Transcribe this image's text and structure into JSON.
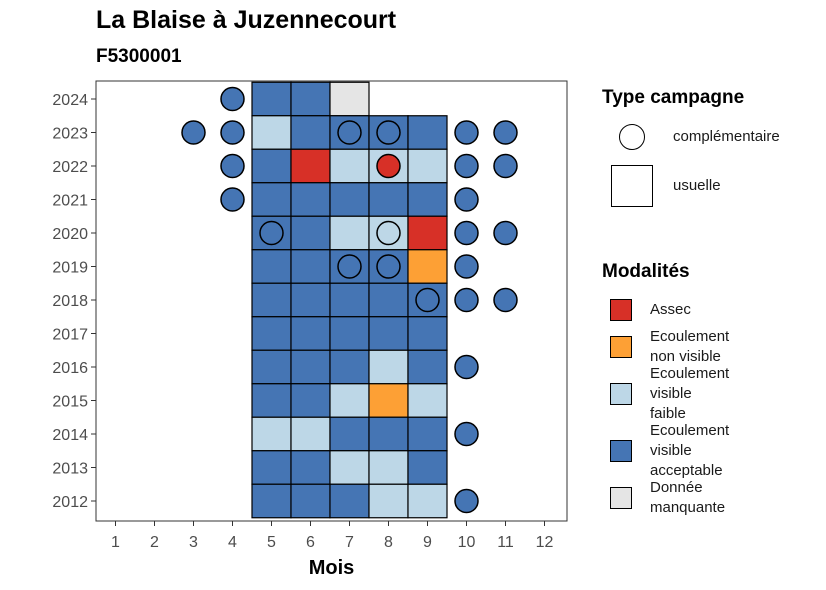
{
  "title": "La Blaise à Juzennecourt",
  "subtitle": "F5300001",
  "colors": {
    "assec": "#D73027",
    "ecoulement_non_visible": "#FDA035",
    "ecoulement_visible_faible": "#BDD7E7",
    "ecoulement_visible_acceptable": "#4575B4",
    "donnee_manquante": "#E5E5E5"
  },
  "legend_type": {
    "title": "Type campagne",
    "items": [
      {
        "label": "complémentaire",
        "shape": "circle"
      },
      {
        "label": "usuelle",
        "shape": "square"
      }
    ]
  },
  "legend_modalites": {
    "title": "Modalités",
    "items": [
      {
        "lines": [
          "Assec"
        ],
        "color": "#D73027"
      },
      {
        "lines": [
          "Ecoulement",
          "non visible"
        ],
        "color": "#FDA035"
      },
      {
        "lines": [
          "Ecoulement",
          "visible",
          "faible"
        ],
        "color": "#BDD7E7"
      },
      {
        "lines": [
          "Ecoulement",
          "visible",
          "acceptable"
        ],
        "color": "#4575B4"
      },
      {
        "lines": [
          "Donnée",
          "manquante"
        ],
        "color": "#E5E5E5"
      }
    ]
  },
  "chart_data": {
    "type": "heatmap",
    "xlabel": "Mois",
    "ylabel": "",
    "x_ticks": [
      "1",
      "2",
      "3",
      "4",
      "5",
      "6",
      "7",
      "8",
      "9",
      "10",
      "11",
      "12"
    ],
    "y_ticks": [
      "2012",
      "2013",
      "2014",
      "2015",
      "2016",
      "2017",
      "2018",
      "2019",
      "2020",
      "2021",
      "2022",
      "2023",
      "2024"
    ],
    "usuelle": [
      {
        "year": 2024,
        "cells": [
          [
            5,
            "ecoulement_visible_acceptable"
          ],
          [
            6,
            "ecoulement_visible_acceptable"
          ],
          [
            7,
            "donnee_manquante"
          ]
        ]
      },
      {
        "year": 2023,
        "cells": [
          [
            5,
            "ecoulement_visible_faible"
          ],
          [
            6,
            "ecoulement_visible_acceptable"
          ],
          [
            7,
            "ecoulement_visible_acceptable"
          ],
          [
            8,
            "ecoulement_visible_acceptable"
          ],
          [
            9,
            "ecoulement_visible_acceptable"
          ]
        ]
      },
      {
        "year": 2022,
        "cells": [
          [
            5,
            "ecoulement_visible_acceptable"
          ],
          [
            6,
            "assec"
          ],
          [
            7,
            "ecoulement_visible_faible"
          ],
          [
            8,
            "ecoulement_visible_faible"
          ],
          [
            9,
            "ecoulement_visible_faible"
          ]
        ]
      },
      {
        "year": 2021,
        "cells": [
          [
            5,
            "ecoulement_visible_acceptable"
          ],
          [
            6,
            "ecoulement_visible_acceptable"
          ],
          [
            7,
            "ecoulement_visible_acceptable"
          ],
          [
            8,
            "ecoulement_visible_acceptable"
          ],
          [
            9,
            "ecoulement_visible_acceptable"
          ]
        ]
      },
      {
        "year": 2020,
        "cells": [
          [
            5,
            "ecoulement_visible_acceptable"
          ],
          [
            6,
            "ecoulement_visible_acceptable"
          ],
          [
            7,
            "ecoulement_visible_faible"
          ],
          [
            8,
            "ecoulement_visible_faible"
          ],
          [
            9,
            "assec"
          ]
        ]
      },
      {
        "year": 2019,
        "cells": [
          [
            5,
            "ecoulement_visible_acceptable"
          ],
          [
            6,
            "ecoulement_visible_acceptable"
          ],
          [
            7,
            "ecoulement_visible_acceptable"
          ],
          [
            8,
            "ecoulement_visible_acceptable"
          ],
          [
            9,
            "ecoulement_non_visible"
          ]
        ]
      },
      {
        "year": 2018,
        "cells": [
          [
            5,
            "ecoulement_visible_acceptable"
          ],
          [
            6,
            "ecoulement_visible_acceptable"
          ],
          [
            7,
            "ecoulement_visible_acceptable"
          ],
          [
            8,
            "ecoulement_visible_acceptable"
          ],
          [
            9,
            "ecoulement_visible_acceptable"
          ]
        ]
      },
      {
        "year": 2017,
        "cells": [
          [
            5,
            "ecoulement_visible_acceptable"
          ],
          [
            6,
            "ecoulement_visible_acceptable"
          ],
          [
            7,
            "ecoulement_visible_acceptable"
          ],
          [
            8,
            "ecoulement_visible_acceptable"
          ],
          [
            9,
            "ecoulement_visible_acceptable"
          ]
        ]
      },
      {
        "year": 2016,
        "cells": [
          [
            5,
            "ecoulement_visible_acceptable"
          ],
          [
            6,
            "ecoulement_visible_acceptable"
          ],
          [
            7,
            "ecoulement_visible_acceptable"
          ],
          [
            8,
            "ecoulement_visible_faible"
          ],
          [
            9,
            "ecoulement_visible_acceptable"
          ]
        ]
      },
      {
        "year": 2015,
        "cells": [
          [
            5,
            "ecoulement_visible_acceptable"
          ],
          [
            6,
            "ecoulement_visible_acceptable"
          ],
          [
            7,
            "ecoulement_visible_faible"
          ],
          [
            8,
            "ecoulement_non_visible"
          ],
          [
            9,
            "ecoulement_visible_faible"
          ]
        ]
      },
      {
        "year": 2014,
        "cells": [
          [
            5,
            "ecoulement_visible_faible"
          ],
          [
            6,
            "ecoulement_visible_faible"
          ],
          [
            7,
            "ecoulement_visible_acceptable"
          ],
          [
            8,
            "ecoulement_visible_acceptable"
          ],
          [
            9,
            "ecoulement_visible_acceptable"
          ]
        ]
      },
      {
        "year": 2013,
        "cells": [
          [
            5,
            "ecoulement_visible_acceptable"
          ],
          [
            6,
            "ecoulement_visible_acceptable"
          ],
          [
            7,
            "ecoulement_visible_faible"
          ],
          [
            8,
            "ecoulement_visible_faible"
          ],
          [
            9,
            "ecoulement_visible_acceptable"
          ]
        ]
      },
      {
        "year": 2012,
        "cells": [
          [
            5,
            "ecoulement_visible_acceptable"
          ],
          [
            6,
            "ecoulement_visible_acceptable"
          ],
          [
            7,
            "ecoulement_visible_acceptable"
          ],
          [
            8,
            "ecoulement_visible_faible"
          ],
          [
            9,
            "ecoulement_visible_faible"
          ]
        ]
      }
    ],
    "complementaire": [
      {
        "year": 2024,
        "cells": [
          [
            4,
            "ecoulement_visible_acceptable"
          ]
        ]
      },
      {
        "year": 2023,
        "cells": [
          [
            3,
            "ecoulement_visible_acceptable"
          ],
          [
            4,
            "ecoulement_visible_acceptable"
          ],
          [
            7,
            "ecoulement_visible_acceptable"
          ],
          [
            8,
            "ecoulement_visible_acceptable"
          ],
          [
            10,
            "ecoulement_visible_acceptable"
          ],
          [
            11,
            "ecoulement_visible_acceptable"
          ]
        ]
      },
      {
        "year": 2022,
        "cells": [
          [
            4,
            "ecoulement_visible_acceptable"
          ],
          [
            8,
            "assec"
          ],
          [
            10,
            "ecoulement_visible_acceptable"
          ],
          [
            11,
            "ecoulement_visible_acceptable"
          ]
        ]
      },
      {
        "year": 2021,
        "cells": [
          [
            4,
            "ecoulement_visible_acceptable"
          ],
          [
            10,
            "ecoulement_visible_acceptable"
          ]
        ]
      },
      {
        "year": 2020,
        "cells": [
          [
            5,
            "ecoulement_visible_acceptable"
          ],
          [
            8,
            "ecoulement_visible_faible"
          ],
          [
            10,
            "ecoulement_visible_acceptable"
          ],
          [
            11,
            "ecoulement_visible_acceptable"
          ]
        ]
      },
      {
        "year": 2019,
        "cells": [
          [
            7,
            "ecoulement_visible_acceptable"
          ],
          [
            8,
            "ecoulement_visible_acceptable"
          ],
          [
            10,
            "ecoulement_visible_acceptable"
          ]
        ]
      },
      {
        "year": 2018,
        "cells": [
          [
            9,
            "ecoulement_visible_acceptable"
          ],
          [
            10,
            "ecoulement_visible_acceptable"
          ],
          [
            11,
            "ecoulement_visible_acceptable"
          ]
        ]
      },
      {
        "year": 2016,
        "cells": [
          [
            10,
            "ecoulement_visible_acceptable"
          ]
        ]
      },
      {
        "year": 2014,
        "cells": [
          [
            10,
            "ecoulement_visible_acceptable"
          ]
        ]
      },
      {
        "year": 2012,
        "cells": [
          [
            10,
            "ecoulement_visible_acceptable"
          ]
        ]
      }
    ]
  }
}
